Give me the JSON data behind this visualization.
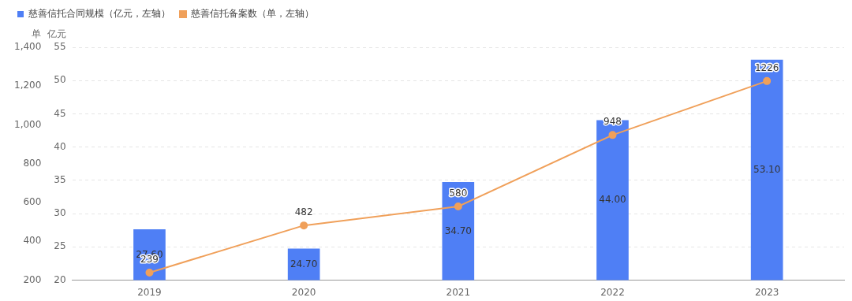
{
  "chart_data": {
    "type": "bar",
    "categories": [
      "2019",
      "2020",
      "2021",
      "2022",
      "2023"
    ],
    "series": [
      {
        "name": "慈善信托合同规模（亿元，左轴）",
        "axis": "y2",
        "color": "#4f7ff5",
        "values": [
          27.6,
          24.7,
          34.7,
          44.0,
          53.1
        ],
        "value_labels": [
          "27.60",
          "24.70",
          "34.70",
          "44.00",
          "53.10"
        ]
      },
      {
        "name": "慈善信托备案数（单，左轴）",
        "type": "line",
        "color": "#f0a05a",
        "values": [
          239,
          482,
          580,
          948,
          1226
        ]
      }
    ],
    "ylabel": "单",
    "y2label": "亿元",
    "ylim": [
      200,
      1400
    ],
    "yticks": [
      200,
      {
        "value": 400,
        "label": "400"
      },
      {
        "value": 600,
        "label": "600"
      },
      {
        "value": 800,
        "label": "800"
      },
      {
        "value": 1000,
        "label": "1,000"
      },
      {
        "value": 1200,
        "label": "1,200"
      },
      {
        "value": 1400,
        "label": "1,400"
      }
    ],
    "y2lim": [
      20,
      55
    ],
    "y2ticks": [
      20,
      25,
      30,
      35,
      40,
      45,
      50,
      55
    ],
    "grid": "y",
    "legend": "top left",
    "marker": "circle",
    "line_style": "solid",
    "data_labels": true
  }
}
